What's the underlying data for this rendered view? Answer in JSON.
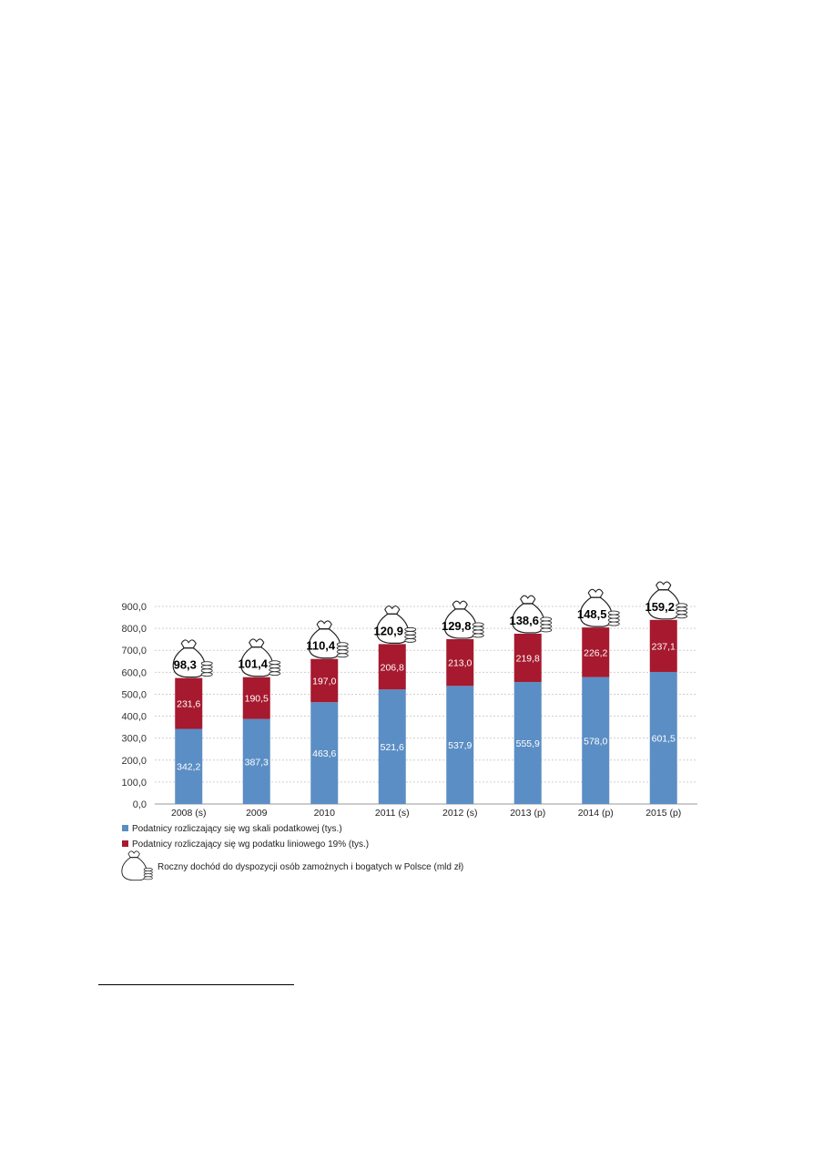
{
  "chart_data": {
    "type": "bar",
    "stacked": true,
    "categories": [
      "2008 (s)",
      "2009",
      "2010",
      "2011 (s)",
      "2012 (s)",
      "2013 (p)",
      "2014 (p)",
      "2015 (p)"
    ],
    "series": [
      {
        "name": "Podatnicy rozliczający się wg skali podatkowej (tys.)",
        "values": [
          342.2,
          387.3,
          463.6,
          521.6,
          537.9,
          555.9,
          578.0,
          601.5
        ],
        "labels": [
          "342,2",
          "387,3",
          "463,6",
          "521,6",
          "537,9",
          "555,9",
          "578,0",
          "601,5"
        ],
        "color": "#5b8ec4"
      },
      {
        "name": "Podatnicy rozliczający się wg podatku liniowego 19% (tys.)",
        "values": [
          231.6,
          190.5,
          197.0,
          206.8,
          213.0,
          219.8,
          226.2,
          237.1
        ],
        "labels": [
          "231,6",
          "190,5",
          "197,0",
          "206,8",
          "213,0",
          "219,8",
          "226,2",
          "237,1"
        ],
        "color": "#a6192e"
      }
    ],
    "annotations": {
      "name": "Roczny dochód do dyspozycji osób zamożnych i bogatych w Polsce (mld zł)",
      "values": [
        98.3,
        101.4,
        110.4,
        120.9,
        129.8,
        138.6,
        148.5,
        159.2
      ],
      "labels": [
        "98,3",
        "101,4",
        "110,4",
        "120,9",
        "129,8",
        "138,6",
        "148,5",
        "159,2"
      ],
      "icon": "money-bag-icon"
    },
    "y_ticks": [
      "0,0",
      "100,0",
      "200,0",
      "300,0",
      "400,0",
      "500,0",
      "600,0",
      "700,0",
      "800,0",
      "900,0"
    ],
    "ylim": [
      0,
      900
    ],
    "grid": true,
    "legend": "bottom-left",
    "title": "",
    "xlabel": "",
    "ylabel": ""
  }
}
